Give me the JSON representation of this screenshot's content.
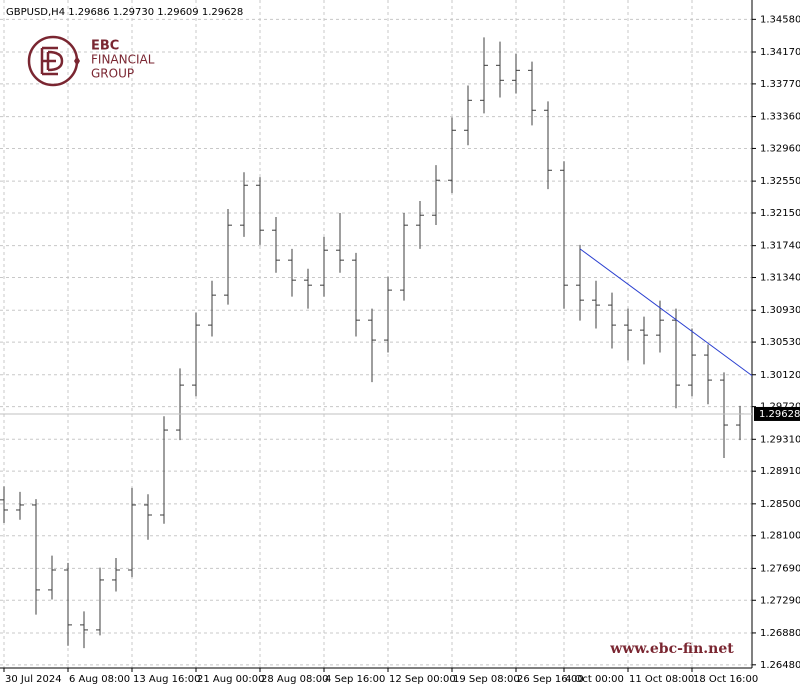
{
  "header": "GBPUSD,H4  1.29686 1.29730 1.29609 1.29628",
  "logo": {
    "lines": [
      "EBC",
      "FINANCIAL",
      "GROUP"
    ]
  },
  "watermark": "www.ebc-fin.net",
  "chart_data": {
    "type": "ohlc",
    "color": "#3c3c3c",
    "grid": true,
    "categories": [
      "30 Jul 2024",
      null,
      null,
      null,
      "6 Aug 08:00",
      null,
      null,
      null,
      "13 Aug 16:00",
      null,
      null,
      null,
      "21 Aug 00:00",
      null,
      null,
      null,
      "28 Aug 08:00",
      null,
      null,
      null,
      "4 Sep 16:00",
      null,
      null,
      null,
      "12 Sep 00:00",
      null,
      null,
      null,
      "19 Sep 08:00",
      null,
      null,
      null,
      "26 Sep 16:00",
      null,
      null,
      "4 Oct 00:00",
      null,
      null,
      null,
      "11 Oct 08:00",
      null,
      null,
      null,
      "18 Oct 16:00",
      null,
      null,
      null
    ],
    "open": [
      1.2855,
      1.28423,
      1.28486,
      1.2742,
      1.2767,
      1.26981,
      1.26918,
      1.27545,
      1.2767,
      1.28486,
      1.2836,
      1.29426,
      1.2999,
      1.30743,
      1.31119,
      1.31997,
      1.32498,
      1.31934,
      1.31558,
      1.31307,
      1.31244,
      1.31683,
      1.31558,
      1.30805,
      1.30555,
      1.31182,
      1.31997,
      1.32122,
      1.32561,
      1.33188,
      1.33564,
      1.34003,
      1.33815,
      1.3394,
      1.33439,
      1.32686,
      1.31244,
      1.31056,
      1.30994,
      1.30743,
      1.3068,
      1.30617,
      1.30805,
      1.2999,
      1.30367,
      1.30053,
      1.29489
    ],
    "high": [
      1.2872,
      1.2865,
      1.2856,
      1.2785,
      1.2776,
      1.2715,
      1.277,
      1.2782,
      1.287,
      1.2862,
      1.296,
      1.302,
      1.309,
      1.313,
      1.322,
      1.32661,
      1.326,
      1.321,
      1.317,
      1.3145,
      1.3185,
      1.3215,
      1.3165,
      1.3095,
      1.3135,
      1.3215,
      1.323,
      1.3275,
      1.3335,
      1.3375,
      1.34354,
      1.343,
      1.3415,
      1.3405,
      1.3355,
      1.328,
      1.3175,
      1.313,
      1.3115,
      1.3095,
      1.3085,
      1.3105,
      1.3095,
      1.307,
      1.305,
      1.3015,
      1.2973
    ],
    "low": [
      1.2826,
      1.283,
      1.2711,
      1.273,
      1.2672,
      1.2669,
      1.2685,
      1.274,
      1.2758,
      1.2805,
      1.2825,
      1.293,
      1.2985,
      1.306,
      1.31,
      1.3185,
      1.3175,
      1.314,
      1.311,
      1.3095,
      1.311,
      1.314,
      1.306,
      1.30028,
      1.304,
      1.3105,
      1.317,
      1.32,
      1.324,
      1.33,
      1.334,
      1.336,
      1.3365,
      1.3325,
      1.3245,
      1.3095,
      1.308,
      1.307,
      1.3045,
      1.303,
      1.3025,
      1.304,
      1.297,
      1.2985,
      1.2975,
      1.29075,
      1.293
    ],
    "close": [
      1.28423,
      1.28486,
      1.2742,
      1.2767,
      1.26981,
      1.26918,
      1.27545,
      1.2767,
      1.28486,
      1.2836,
      1.29426,
      1.2999,
      1.30743,
      1.31119,
      1.31997,
      1.32498,
      1.31934,
      1.31558,
      1.31307,
      1.31244,
      1.31683,
      1.31558,
      1.30805,
      1.30555,
      1.31182,
      1.31997,
      1.32122,
      1.32561,
      1.33188,
      1.33564,
      1.34003,
      1.33815,
      1.3394,
      1.33439,
      1.32686,
      1.31244,
      1.31056,
      1.30994,
      1.30743,
      1.3068,
      1.30617,
      1.30805,
      1.2999,
      1.30367,
      1.30053,
      1.29489,
      1.29628
    ],
    "ylim": [
      1.2644,
      1.3476
    ],
    "yticks": [
      {
        "value": 1.3458,
        "label": "1.34580"
      },
      {
        "value": 1.3417,
        "label": "1.34170"
      },
      {
        "value": 1.3377,
        "label": "1.33770"
      },
      {
        "value": 1.3336,
        "label": "1.33360"
      },
      {
        "value": 1.3296,
        "label": "1.32960"
      },
      {
        "value": 1.3255,
        "label": "1.32550"
      },
      {
        "value": 1.3215,
        "label": "1.32150"
      },
      {
        "value": 1.3174,
        "label": "1.31740"
      },
      {
        "value": 1.3134,
        "label": "1.31340"
      },
      {
        "value": 1.3093,
        "label": "1.30930"
      },
      {
        "value": 1.3053,
        "label": "1.30530"
      },
      {
        "value": 1.3012,
        "label": "1.30120"
      },
      {
        "value": 1.2972,
        "label": "1.29720"
      },
      {
        "value": 1.2931,
        "label": "1.29310"
      },
      {
        "value": 1.2891,
        "label": "1.28910"
      },
      {
        "value": 1.285,
        "label": "1.28500"
      },
      {
        "value": 1.281,
        "label": "1.28100"
      },
      {
        "value": 1.2769,
        "label": "1.27690"
      },
      {
        "value": 1.2729,
        "label": "1.27290"
      },
      {
        "value": 1.2688,
        "label": "1.26880"
      },
      {
        "value": 1.2648,
        "label": "1.26480"
      }
    ],
    "trendline": {
      "color": "#2a3fd0",
      "from_index": 36,
      "from_price": 1.317,
      "to_index": 46,
      "to_price": 1.3022
    }
  }
}
